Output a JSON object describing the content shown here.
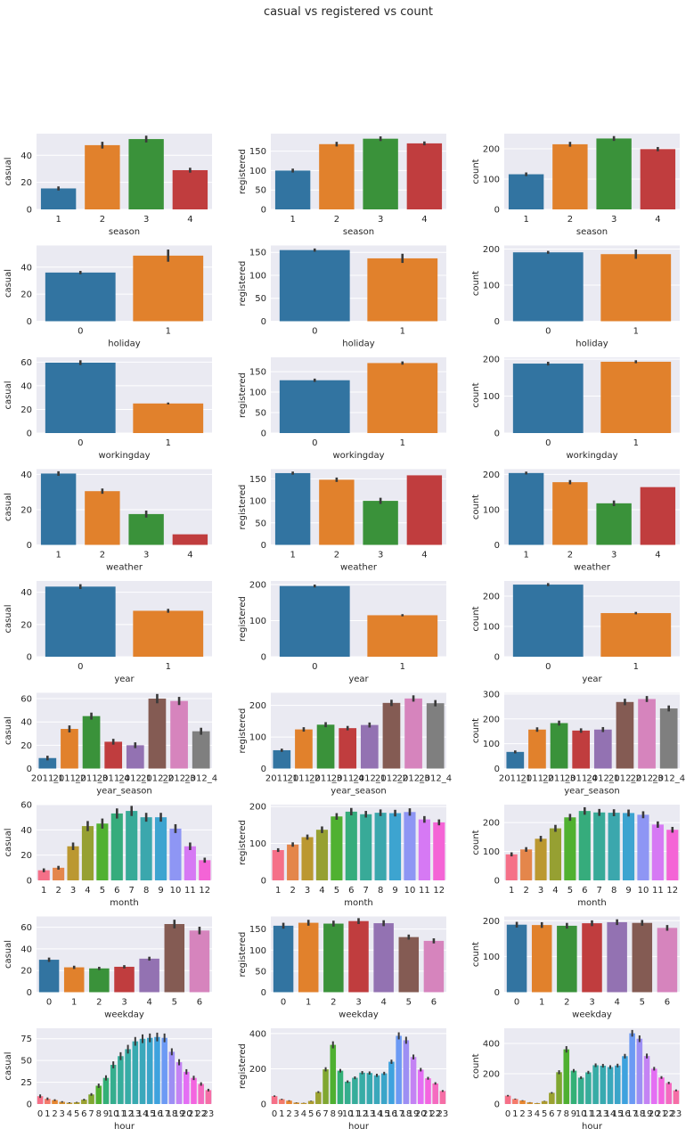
{
  "title": "casual vs registered vs count",
  "colors": {
    "panel_bg": "#eaeaf2",
    "grid": "#ffffff",
    "errbar": "#3a3a3a",
    "palette": [
      "#3274a1",
      "#e1812c",
      "#3a923a",
      "#c03d3e",
      "#9372b2",
      "#845b53",
      "#d684bd",
      "#7f7f7f",
      "#a9aa35",
      "#2eabb8"
    ],
    "palette_husl12": [
      "#f57088",
      "#e4864b",
      "#bb9831",
      "#96a032",
      "#50b131",
      "#36ac7c",
      "#38aa98",
      "#3ba7ad",
      "#3da4d0",
      "#8e96f4",
      "#d679f4",
      "#f464d6"
    ],
    "palette_husl24": [
      "#f67088",
      "#f47a6b",
      "#e78630",
      "#d18f31",
      "#bf9630",
      "#ad9c31",
      "#9ba231",
      "#80a731",
      "#4fb031",
      "#33b077",
      "#35ae8e",
      "#36ad9b",
      "#37aca6",
      "#38aab0",
      "#3aa8bb",
      "#3ba5c9",
      "#3ea2de",
      "#6c9af4",
      "#9d8ff4",
      "#c483f4",
      "#e46ff4",
      "#f465e0",
      "#f56bc0",
      "#f66ea6"
    ]
  },
  "chart_data": [
    {
      "type": "bar",
      "row": 0,
      "col": 0,
      "xlabel": "season",
      "ylabel": "casual",
      "categories": [
        "1",
        "2",
        "3",
        "4"
      ],
      "values": [
        15.5,
        47.5,
        52,
        29
      ],
      "err": [
        1.5,
        2.5,
        2.5,
        1.8
      ],
      "ylim": [
        0,
        56
      ],
      "yticks": [
        0,
        20,
        40
      ],
      "palette": "palette"
    },
    {
      "type": "bar",
      "row": 0,
      "col": 1,
      "xlabel": "season",
      "ylabel": "registered",
      "categories": [
        "1",
        "2",
        "3",
        "4"
      ],
      "values": [
        100,
        168,
        182,
        170
      ],
      "err": [
        5,
        6,
        6,
        5
      ],
      "ylim": [
        0,
        195
      ],
      "yticks": [
        0,
        50,
        100,
        150
      ],
      "palette": "palette"
    },
    {
      "type": "bar",
      "row": 0,
      "col": 2,
      "xlabel": "season",
      "ylabel": "count",
      "categories": [
        "1",
        "2",
        "3",
        "4"
      ],
      "values": [
        116,
        215,
        234,
        199
      ],
      "err": [
        6,
        8,
        8,
        7
      ],
      "ylim": [
        0,
        250
      ],
      "yticks": [
        0,
        100,
        200
      ],
      "palette": "palette"
    },
    {
      "type": "bar",
      "row": 1,
      "col": 0,
      "xlabel": "holiday",
      "ylabel": "casual",
      "categories": [
        "0",
        "1"
      ],
      "values": [
        36,
        48.5
      ],
      "err": [
        1.2,
        4.5
      ],
      "ylim": [
        0,
        56
      ],
      "yticks": [
        0,
        20,
        40
      ],
      "palette": "palette"
    },
    {
      "type": "bar",
      "row": 1,
      "col": 1,
      "xlabel": "holiday",
      "ylabel": "registered",
      "categories": [
        "0",
        "1"
      ],
      "values": [
        155,
        137
      ],
      "err": [
        3.5,
        10
      ],
      "ylim": [
        0,
        165
      ],
      "yticks": [
        0,
        50,
        100,
        150
      ],
      "palette": "palette"
    },
    {
      "type": "bar",
      "row": 1,
      "col": 2,
      "xlabel": "holiday",
      "ylabel": "count",
      "categories": [
        "0",
        "1"
      ],
      "values": [
        191,
        186
      ],
      "err": [
        4,
        13
      ],
      "ylim": [
        0,
        210
      ],
      "yticks": [
        0,
        100,
        200
      ],
      "palette": "palette"
    },
    {
      "type": "bar",
      "row": 2,
      "col": 0,
      "xlabel": "workingday",
      "ylabel": "casual",
      "categories": [
        "0",
        "1"
      ],
      "values": [
        59.5,
        25
      ],
      "err": [
        2,
        0.8
      ],
      "ylim": [
        0,
        64
      ],
      "yticks": [
        0,
        20,
        40,
        60
      ],
      "palette": "palette"
    },
    {
      "type": "bar",
      "row": 2,
      "col": 1,
      "xlabel": "workingday",
      "ylabel": "registered",
      "categories": [
        "0",
        "1"
      ],
      "values": [
        129,
        171
      ],
      "err": [
        4,
        4
      ],
      "ylim": [
        0,
        185
      ],
      "yticks": [
        0,
        50,
        100,
        150
      ],
      "palette": "palette"
    },
    {
      "type": "bar",
      "row": 2,
      "col": 2,
      "xlabel": "workingday",
      "ylabel": "count",
      "categories": [
        "0",
        "1"
      ],
      "values": [
        188,
        193
      ],
      "err": [
        5,
        4
      ],
      "ylim": [
        0,
        205
      ],
      "yticks": [
        0,
        100,
        200
      ],
      "palette": "palette"
    },
    {
      "type": "bar",
      "row": 3,
      "col": 0,
      "xlabel": "weather",
      "ylabel": "casual",
      "categories": [
        "1",
        "2",
        "3",
        "4"
      ],
      "values": [
        40.5,
        30.5,
        17.5,
        6
      ],
      "err": [
        1.3,
        1.5,
        2,
        0
      ],
      "ylim": [
        0,
        43
      ],
      "yticks": [
        0,
        20,
        40
      ],
      "palette": "palette"
    },
    {
      "type": "bar",
      "row": 3,
      "col": 1,
      "xlabel": "weather",
      "ylabel": "registered",
      "categories": [
        "1",
        "2",
        "3",
        "4"
      ],
      "values": [
        163,
        148,
        100,
        158
      ],
      "err": [
        3.5,
        5,
        7,
        0
      ],
      "ylim": [
        0,
        172
      ],
      "yticks": [
        0,
        50,
        100,
        150
      ],
      "palette": "palette"
    },
    {
      "type": "bar",
      "row": 3,
      "col": 2,
      "xlabel": "weather",
      "ylabel": "count",
      "categories": [
        "1",
        "2",
        "3",
        "4"
      ],
      "values": [
        204,
        178,
        118,
        164
      ],
      "err": [
        4,
        6,
        8,
        0
      ],
      "ylim": [
        0,
        215
      ],
      "yticks": [
        0,
        100,
        200
      ],
      "palette": "palette"
    },
    {
      "type": "bar",
      "row": 4,
      "col": 0,
      "xlabel": "year",
      "ylabel": "casual",
      "categories": [
        "0",
        "1"
      ],
      "values": [
        43.5,
        28.5
      ],
      "err": [
        1.5,
        1.2
      ],
      "ylim": [
        0,
        47
      ],
      "yticks": [
        0,
        20,
        40
      ],
      "palette": "palette"
    },
    {
      "type": "bar",
      "row": 4,
      "col": 1,
      "xlabel": "year",
      "ylabel": "registered",
      "categories": [
        "0",
        "1"
      ],
      "values": [
        196,
        115
      ],
      "err": [
        4,
        3
      ],
      "ylim": [
        0,
        210
      ],
      "yticks": [
        0,
        100,
        200
      ],
      "palette": "palette"
    },
    {
      "type": "bar",
      "row": 4,
      "col": 2,
      "xlabel": "year",
      "ylabel": "count",
      "categories": [
        "0",
        "1"
      ],
      "values": [
        238,
        144
      ],
      "err": [
        5,
        4
      ],
      "ylim": [
        0,
        250
      ],
      "yticks": [
        0,
        100,
        200
      ],
      "palette": "palette"
    },
    {
      "type": "bar",
      "row": 5,
      "col": 0,
      "xlabel": "year_season",
      "ylabel": "casual",
      "categories": [
        "2011_1",
        "2011_2",
        "2011_3",
        "2011_4",
        "2012_1",
        "2012_2",
        "2012_3",
        "2012_4"
      ],
      "tick_labels": [
        "2011_1",
        "2011_2",
        "2011_3",
        "2011_4",
        "2012_1",
        "2012_2",
        "2012_3",
        "2012_4"
      ],
      "values": [
        9,
        34,
        45,
        23,
        20,
        60,
        58,
        32
      ],
      "err": [
        2,
        3,
        3,
        2.5,
        2.5,
        4,
        3.5,
        3
      ],
      "ylim": [
        0,
        65
      ],
      "yticks": [
        0,
        20,
        40,
        60
      ],
      "palette": "palette"
    },
    {
      "type": "bar",
      "row": 5,
      "col": 1,
      "xlabel": "year_season",
      "ylabel": "registered",
      "categories": [
        "2011_1",
        "2011_2",
        "2011_3",
        "2011_4",
        "2012_1",
        "2012_2",
        "2012_3",
        "2012_4"
      ],
      "tick_labels": [
        "2011_1",
        "2011_2",
        "2011_3",
        "2011_4",
        "2012_1",
        "2012_2",
        "2012_3",
        "2012_4"
      ],
      "values": [
        58,
        124,
        139,
        128,
        138,
        208,
        222,
        207
      ],
      "err": [
        5,
        7,
        8,
        7,
        8,
        10,
        10,
        10
      ],
      "ylim": [
        0,
        240
      ],
      "yticks": [
        0,
        100,
        200
      ],
      "palette": "palette"
    },
    {
      "type": "bar",
      "row": 5,
      "col": 2,
      "xlabel": "year_season",
      "ylabel": "count",
      "categories": [
        "2011_1",
        "2011_2",
        "2011_3",
        "2011_4",
        "2012_1",
        "2012_2",
        "2012_3",
        "2012_4"
      ],
      "tick_labels": [
        "2011_1",
        "2011_2",
        "2011_3",
        "2011_4",
        "2012_1",
        "2012_2",
        "2012_3",
        "2012_4"
      ],
      "values": [
        67,
        157,
        183,
        153,
        157,
        268,
        280,
        242
      ],
      "err": [
        6,
        9,
        10,
        9,
        10,
        13,
        12,
        12
      ],
      "ylim": [
        0,
        305
      ],
      "yticks": [
        0,
        100,
        200,
        300
      ],
      "palette": "palette"
    },
    {
      "type": "bar",
      "row": 6,
      "col": 0,
      "xlabel": "month",
      "ylabel": "casual",
      "categories": [
        "1",
        "2",
        "3",
        "4",
        "5",
        "6",
        "7",
        "8",
        "9",
        "10",
        "11",
        "12"
      ],
      "values": [
        8,
        10,
        27,
        43,
        45,
        53,
        55,
        50,
        50,
        41,
        27,
        16
      ],
      "err": [
        1.5,
        1.5,
        3,
        4,
        4,
        4,
        4,
        3.5,
        3.5,
        3.5,
        3,
        2
      ],
      "ylim": [
        0,
        60
      ],
      "yticks": [
        0,
        20,
        40,
        60
      ],
      "palette": "palette_husl12"
    },
    {
      "type": "bar",
      "row": 6,
      "col": 1,
      "xlabel": "month",
      "ylabel": "registered",
      "categories": [
        "1",
        "2",
        "3",
        "4",
        "5",
        "6",
        "7",
        "8",
        "9",
        "10",
        "11",
        "12"
      ],
      "values": [
        82,
        97,
        117,
        137,
        173,
        186,
        179,
        183,
        182,
        185,
        165,
        157
      ],
      "err": [
        5,
        6,
        7,
        9,
        9,
        10,
        9,
        9,
        9,
        10,
        9,
        8
      ],
      "ylim": [
        0,
        205
      ],
      "yticks": [
        0,
        100,
        200
      ],
      "palette": "palette_husl12"
    },
    {
      "type": "bar",
      "row": 6,
      "col": 2,
      "xlabel": "month",
      "ylabel": "count",
      "categories": [
        "1",
        "2",
        "3",
        "4",
        "5",
        "6",
        "7",
        "8",
        "9",
        "10",
        "11",
        "12"
      ],
      "values": [
        90,
        107,
        144,
        180,
        218,
        240,
        235,
        234,
        233,
        227,
        193,
        175
      ],
      "err": [
        7,
        8,
        10,
        12,
        12,
        13,
        12,
        12,
        12,
        12,
        11,
        10
      ],
      "ylim": [
        0,
        262
      ],
      "yticks": [
        0,
        100,
        200
      ],
      "palette": "palette_husl12"
    },
    {
      "type": "bar",
      "row": 7,
      "col": 0,
      "xlabel": "weekday",
      "ylabel": "casual",
      "categories": [
        "0",
        "1",
        "2",
        "3",
        "4",
        "5",
        "6"
      ],
      "values": [
        30,
        23,
        22,
        23.5,
        31,
        63,
        57
      ],
      "err": [
        2,
        1.5,
        1.5,
        1.5,
        1.8,
        4,
        3.5
      ],
      "ylim": [
        0,
        70
      ],
      "yticks": [
        0,
        20,
        40,
        60
      ],
      "palette": "palette"
    },
    {
      "type": "bar",
      "row": 7,
      "col": 1,
      "xlabel": "weekday",
      "ylabel": "registered",
      "categories": [
        "0",
        "1",
        "2",
        "3",
        "4",
        "5",
        "6"
      ],
      "values": [
        158,
        165,
        163,
        169,
        164,
        131,
        122
      ],
      "err": [
        7,
        7,
        7,
        7,
        7,
        6,
        6
      ],
      "ylim": [
        0,
        180
      ],
      "yticks": [
        0,
        50,
        100,
        150
      ],
      "palette": "palette"
    },
    {
      "type": "bar",
      "row": 7,
      "col": 2,
      "xlabel": "weekday",
      "ylabel": "count",
      "categories": [
        "0",
        "1",
        "2",
        "3",
        "4",
        "5",
        "6"
      ],
      "values": [
        189,
        188,
        186,
        193,
        196,
        194,
        180
      ],
      "err": [
        8,
        8,
        8,
        8,
        8,
        8,
        8
      ],
      "ylim": [
        0,
        212
      ],
      "yticks": [
        0,
        100,
        200
      ],
      "palette": "palette"
    },
    {
      "type": "bar",
      "row": 8,
      "col": 0,
      "xlabel": "hour",
      "ylabel": "casual",
      "categories": [
        "0",
        "1",
        "2",
        "3",
        "4",
        "5",
        "6",
        "7",
        "8",
        "9",
        "10",
        "11",
        "12",
        "13",
        "14",
        "15",
        "16",
        "17",
        "18",
        "19",
        "20",
        "21",
        "22",
        "23"
      ],
      "values": [
        9,
        6,
        4.5,
        2.5,
        1.5,
        2,
        5,
        11,
        21,
        30,
        45,
        55,
        63,
        72,
        75,
        76,
        77,
        76,
        60,
        48,
        37,
        30,
        23,
        16
      ],
      "err": [
        2,
        1.5,
        1,
        0.8,
        0.5,
        0.5,
        1,
        1.5,
        2.5,
        3,
        4,
        4.5,
        5,
        5,
        5,
        5,
        5,
        5,
        4,
        3.5,
        3,
        2.5,
        2,
        1.5
      ],
      "ylim": [
        0,
        87
      ],
      "yticks": [
        0,
        25,
        50,
        75
      ],
      "palette": "palette_husl24"
    },
    {
      "type": "bar",
      "row": 8,
      "col": 1,
      "xlabel": "hour",
      "ylabel": "registered",
      "categories": [
        "0",
        "1",
        "2",
        "3",
        "4",
        "5",
        "6",
        "7",
        "8",
        "9",
        "10",
        "11",
        "12",
        "13",
        "14",
        "15",
        "16",
        "17",
        "18",
        "19",
        "20",
        "21",
        "22",
        "23"
      ],
      "values": [
        45,
        27,
        19,
        8,
        6,
        17,
        68,
        197,
        336,
        189,
        127,
        149,
        178,
        176,
        163,
        174,
        240,
        387,
        362,
        267,
        195,
        146,
        117,
        74
      ],
      "err": [
        4,
        3,
        2.5,
        1.5,
        1,
        2,
        5,
        12,
        20,
        10,
        7,
        8,
        9,
        9,
        9,
        9,
        12,
        20,
        20,
        14,
        10,
        8,
        7,
        5
      ],
      "ylim": [
        0,
        430
      ],
      "yticks": [
        0,
        200,
        400
      ],
      "palette": "palette_husl24"
    },
    {
      "type": "bar",
      "row": 8,
      "col": 2,
      "xlabel": "hour",
      "ylabel": "count",
      "categories": [
        "0",
        "1",
        "2",
        "3",
        "4",
        "5",
        "6",
        "7",
        "8",
        "9",
        "10",
        "11",
        "12",
        "13",
        "14",
        "15",
        "16",
        "17",
        "18",
        "19",
        "20",
        "21",
        "22",
        "23"
      ],
      "values": [
        55,
        33,
        23,
        11,
        6,
        19,
        74,
        210,
        361,
        220,
        174,
        209,
        256,
        253,
        244,
        254,
        316,
        467,
        431,
        317,
        233,
        175,
        139,
        90
      ],
      "err": [
        5,
        3,
        2.5,
        1.5,
        1,
        2,
        5,
        13,
        21,
        11,
        9,
        10,
        12,
        12,
        12,
        12,
        15,
        22,
        22,
        16,
        12,
        9,
        8,
        6
      ],
      "ylim": [
        0,
        500
      ],
      "yticks": [
        0,
        200,
        400
      ],
      "palette": "palette_husl24"
    }
  ]
}
